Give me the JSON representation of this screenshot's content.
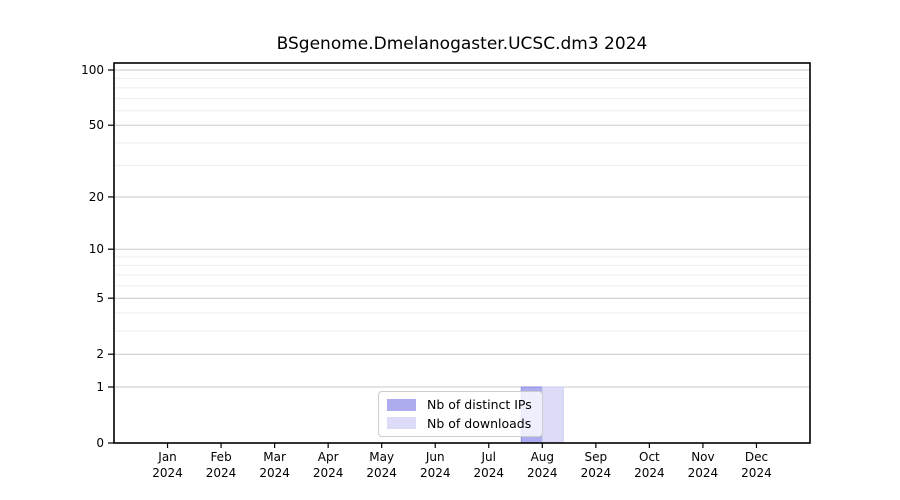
{
  "chart_data": {
    "type": "bar",
    "title": "BSgenome.Dmelanogaster.UCSC.dm3 2024",
    "categories": [
      "Jan",
      "Feb",
      "Mar",
      "Apr",
      "May",
      "Jun",
      "Jul",
      "Aug",
      "Sep",
      "Oct",
      "Nov",
      "Dec"
    ],
    "year": "2024",
    "series": [
      {
        "name": "Nb of distinct IPs",
        "color": "#acacee",
        "edge_color": "#8f8fe0",
        "values": [
          0,
          0,
          0,
          0,
          0,
          0,
          0,
          1,
          0,
          0,
          0,
          0
        ]
      },
      {
        "name": "Nb of downloads",
        "color": "#dcdcf8",
        "edge_color": "#cbcbf2",
        "values": [
          0,
          0,
          0,
          0,
          0,
          0,
          0,
          1,
          0,
          0,
          0,
          0
        ]
      }
    ],
    "y_axis": {
      "scale": "log1p",
      "ylim": [
        0,
        100
      ],
      "major_ticks": [
        0,
        1,
        2,
        5,
        10,
        20,
        50,
        100
      ],
      "minor_gridlines": [
        3,
        4,
        6,
        7,
        8,
        9,
        30,
        40,
        60,
        70,
        80,
        90
      ]
    },
    "grid": "horizontal-only",
    "legend": {
      "position": "bottom-center",
      "entries": [
        "Nb of distinct IPs",
        "Nb of downloads"
      ]
    },
    "colors": {
      "grid_major": "#c9c9c9",
      "grid_minor": "#eeeeee",
      "axis_frame": "#000000",
      "background": "#ffffff"
    }
  }
}
